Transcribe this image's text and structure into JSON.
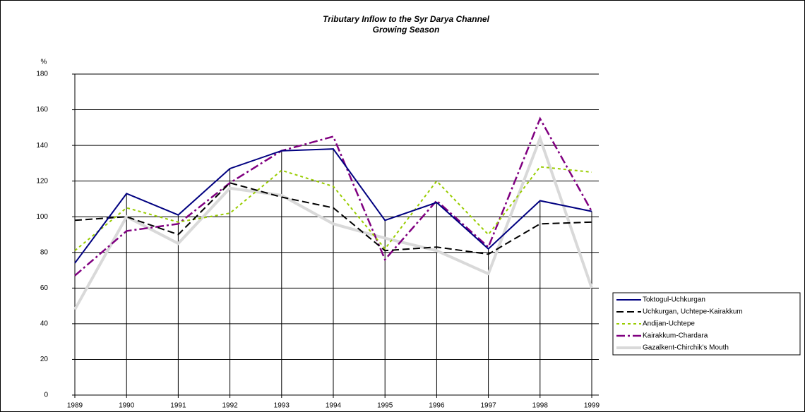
{
  "chart_data": {
    "type": "line",
    "title": "Tributary Inflow to the Syr Darya Channel",
    "subtitle": "Growing Season",
    "y_label": "%",
    "categories": [
      "1989",
      "1990",
      "1991",
      "1992",
      "1993",
      "1994",
      "1995",
      "1996",
      "1997",
      "1998",
      "1999"
    ],
    "series": [
      {
        "name": "Toktogul-Uchkurgan",
        "color": "#000080",
        "values": [
          74,
          113,
          101,
          127,
          137,
          138,
          98,
          108,
          82,
          109,
          103
        ]
      },
      {
        "name": "Uchkurgan, Uchtepe-Kairakkum",
        "color": "#000000",
        "values": [
          98,
          100,
          90,
          119,
          111,
          105,
          81,
          83,
          79,
          96,
          97
        ]
      },
      {
        "name": "Andijan-Uchtepe",
        "color": "#99cc00",
        "values": [
          81,
          105,
          97,
          102,
          126,
          117,
          82,
          120,
          90,
          128,
          125
        ]
      },
      {
        "name": "Kairakkum-Chardara",
        "color": "#800080",
        "values": [
          67,
          92,
          96,
          119,
          137,
          145,
          76,
          109,
          83,
          155,
          103
        ]
      },
      {
        "name": "Gazalkent-Chirchik's Mouth",
        "color": "#d9d9d9",
        "values": [
          48,
          100,
          85,
          116,
          112,
          96,
          88,
          81,
          68,
          144,
          60
        ]
      }
    ],
    "ylim": [
      0,
      180
    ],
    "yticks": [
      0,
      20,
      40,
      60,
      80,
      100,
      120,
      140,
      160,
      180
    ],
    "grid": true,
    "legend": "right"
  }
}
